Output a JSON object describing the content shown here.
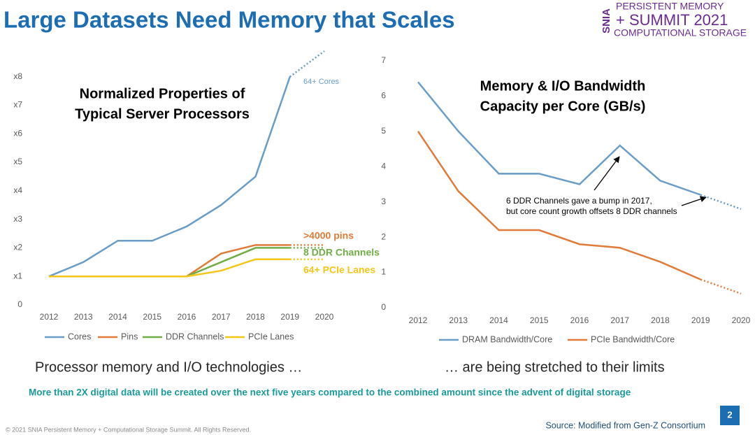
{
  "slide": {
    "title": "Large Datasets Need Memory that Scales",
    "logo": {
      "mark": "SNIA",
      "line1": "PERSISTENT MEMORY",
      "line2": "+ SUMMIT 2021",
      "line3": "COMPUTATIONAL STORAGE"
    },
    "caption_left": "Processor memory and I/O technologies …",
    "caption_right": "… are being stretched to their limits",
    "statement": "More than 2X digital data will be created over the next five years compared to the combined  amount since the advent of digital storage",
    "copyright": "© 2021 SNIA Persistent Memory + Computational Storage Summit. All Rights Reserved.",
    "source": "Source: Modified from Gen-Z Consortium",
    "page": "2"
  },
  "chart_data": [
    {
      "type": "line",
      "title": [
        "Normalized Properties of",
        "Typical Server Processors"
      ],
      "categories": [
        "2012",
        "2013",
        "2014",
        "2015",
        "2016",
        "2017",
        "2018",
        "2019",
        "2020"
      ],
      "projection_start": "2019",
      "series": [
        {
          "name": "Cores",
          "color": "#6a9cc8",
          "values": [
            1,
            1.5,
            2.25,
            2.25,
            2.75,
            3.5,
            4.5,
            8,
            8.9
          ]
        },
        {
          "name": "Pins",
          "color": "#e07b39",
          "values": [
            1,
            1,
            1,
            1,
            1,
            1.8,
            2.1,
            2.1,
            2.1
          ]
        },
        {
          "name": "DDR Channels",
          "color": "#70ad47",
          "values": [
            1,
            1,
            1,
            1,
            1,
            1.5,
            2,
            2,
            2
          ]
        },
        {
          "name": "PCIe Lanes",
          "color": "#f5c518",
          "values": [
            1,
            1,
            1,
            1,
            1,
            1.2,
            1.6,
            1.6,
            1.6
          ]
        }
      ],
      "annotations": [
        "64+ Cores",
        ">4000 pins",
        "8 DDR Channels",
        "64+ PCIe Lanes"
      ],
      "ylim": [
        0,
        8.9
      ],
      "yticks": [
        0,
        {
          "value": 1,
          "label": "x1"
        },
        {
          "value": 2,
          "label": "x2"
        },
        {
          "value": 3,
          "label": "x3"
        },
        {
          "value": 4,
          "label": "x4"
        },
        {
          "value": 5,
          "label": "x5"
        },
        {
          "value": 6,
          "label": "x6"
        },
        {
          "value": 7,
          "label": "x7"
        },
        {
          "value": 8,
          "label": "x8"
        }
      ],
      "legend": "bottom"
    },
    {
      "type": "line",
      "title": [
        "Memory & I/O Bandwidth",
        "Capacity per Core (GB/s)"
      ],
      "categories": [
        "2012",
        "2013",
        "2014",
        "2015",
        "2016",
        "2017",
        "2018",
        "2019",
        "2020"
      ],
      "projection_start": "2019",
      "series": [
        {
          "name": "DRAM Bandwidth/Core",
          "color": "#6a9cc8",
          "values": [
            6.4,
            5.0,
            3.8,
            3.8,
            3.5,
            4.6,
            3.6,
            3.2,
            2.8
          ]
        },
        {
          "name": "PCIe Bandwidth/Core",
          "color": "#e07b39",
          "values": [
            5.0,
            3.3,
            2.2,
            2.2,
            1.8,
            1.7,
            1.3,
            0.8,
            0.4
          ]
        }
      ],
      "annotations": [
        "6 DDR Channels gave a bump in 2017,",
        "but core count growth offsets 8 DDR channels"
      ],
      "ylim": [
        0,
        7
      ],
      "yticks": [
        0,
        1,
        2,
        3,
        4,
        5,
        6,
        7
      ],
      "legend": "bottom"
    }
  ]
}
